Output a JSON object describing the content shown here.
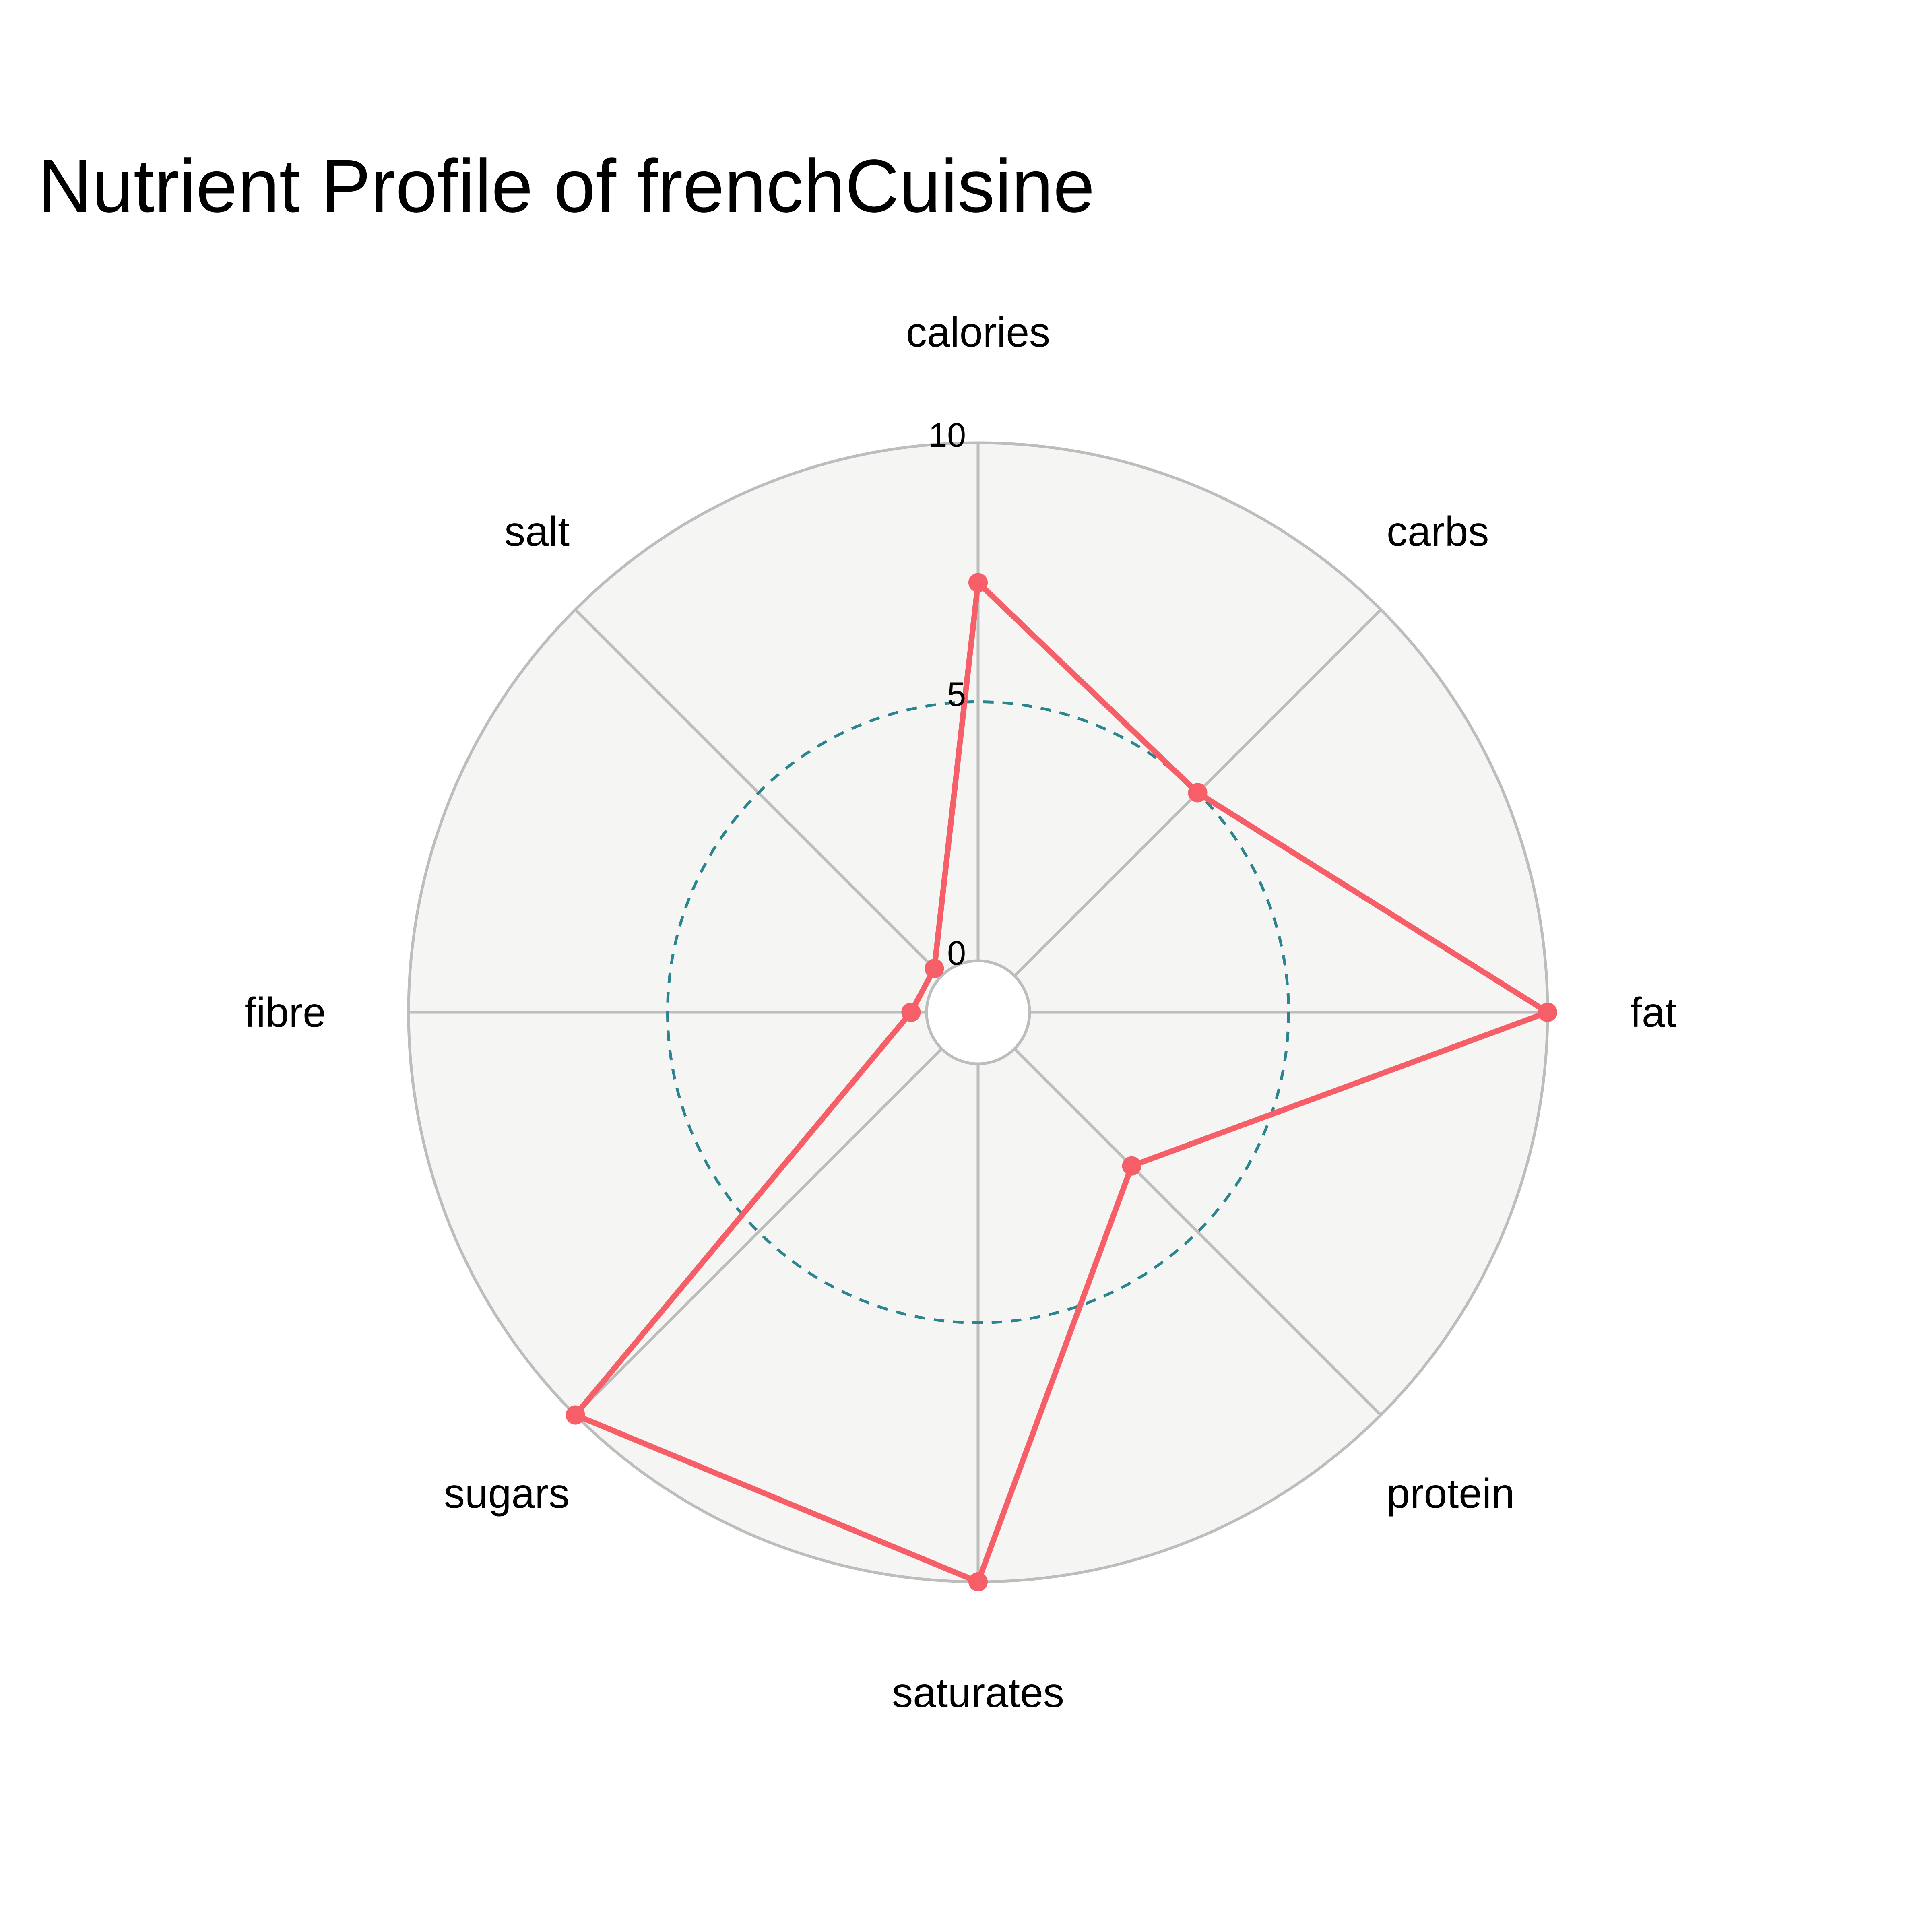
{
  "chart_data": {
    "type": "radar",
    "title": "Nutrient Profile of frenchCuisine",
    "categories": [
      "calories",
      "carbs",
      "fat",
      "protein",
      "saturates",
      "sugars",
      "fibre",
      "salt"
    ],
    "series": [
      {
        "values": [
          7.3,
          5.0,
          10.0,
          3.2,
          10.0,
          10.0,
          0.3,
          0.2
        ]
      }
    ],
    "rlim": [
      -1,
      10
    ],
    "radial_ticks": [
      0,
      5,
      10
    ],
    "reference_ring": 5,
    "colors": {
      "series": "#f65e68",
      "plot_background": "#f5f5f3",
      "grid": "#bdbdbd",
      "reference_ring": "#2b8590"
    }
  }
}
